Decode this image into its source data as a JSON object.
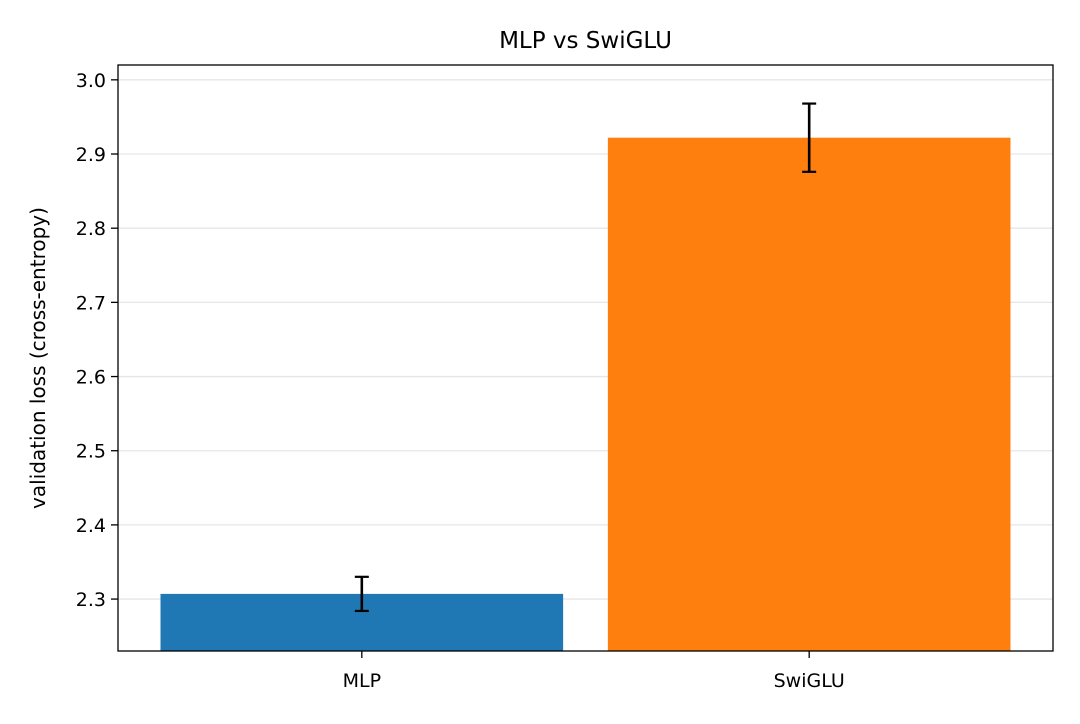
{
  "chart_data": {
    "type": "bar",
    "title": "MLP vs SwiGLU",
    "xlabel": "",
    "ylabel": "validation loss (cross-entropy)",
    "categories": [
      "MLP",
      "SwiGLU"
    ],
    "values": [
      2.307,
      2.922
    ],
    "errors": [
      0.023,
      0.046
    ],
    "colors": [
      "#1f77b4",
      "#ff7f0e"
    ],
    "ylim": [
      2.23,
      3.02
    ],
    "yticks": [
      2.3,
      2.4,
      2.5,
      2.6,
      2.7,
      2.8,
      2.9,
      3.0
    ],
    "ytick_labels": [
      "2.3",
      "2.4",
      "2.5",
      "2.6",
      "2.7",
      "2.8",
      "2.9",
      "3.0"
    ],
    "grid": "y",
    "grid_color": "#e6e6e6",
    "error_color": "#000000"
  }
}
